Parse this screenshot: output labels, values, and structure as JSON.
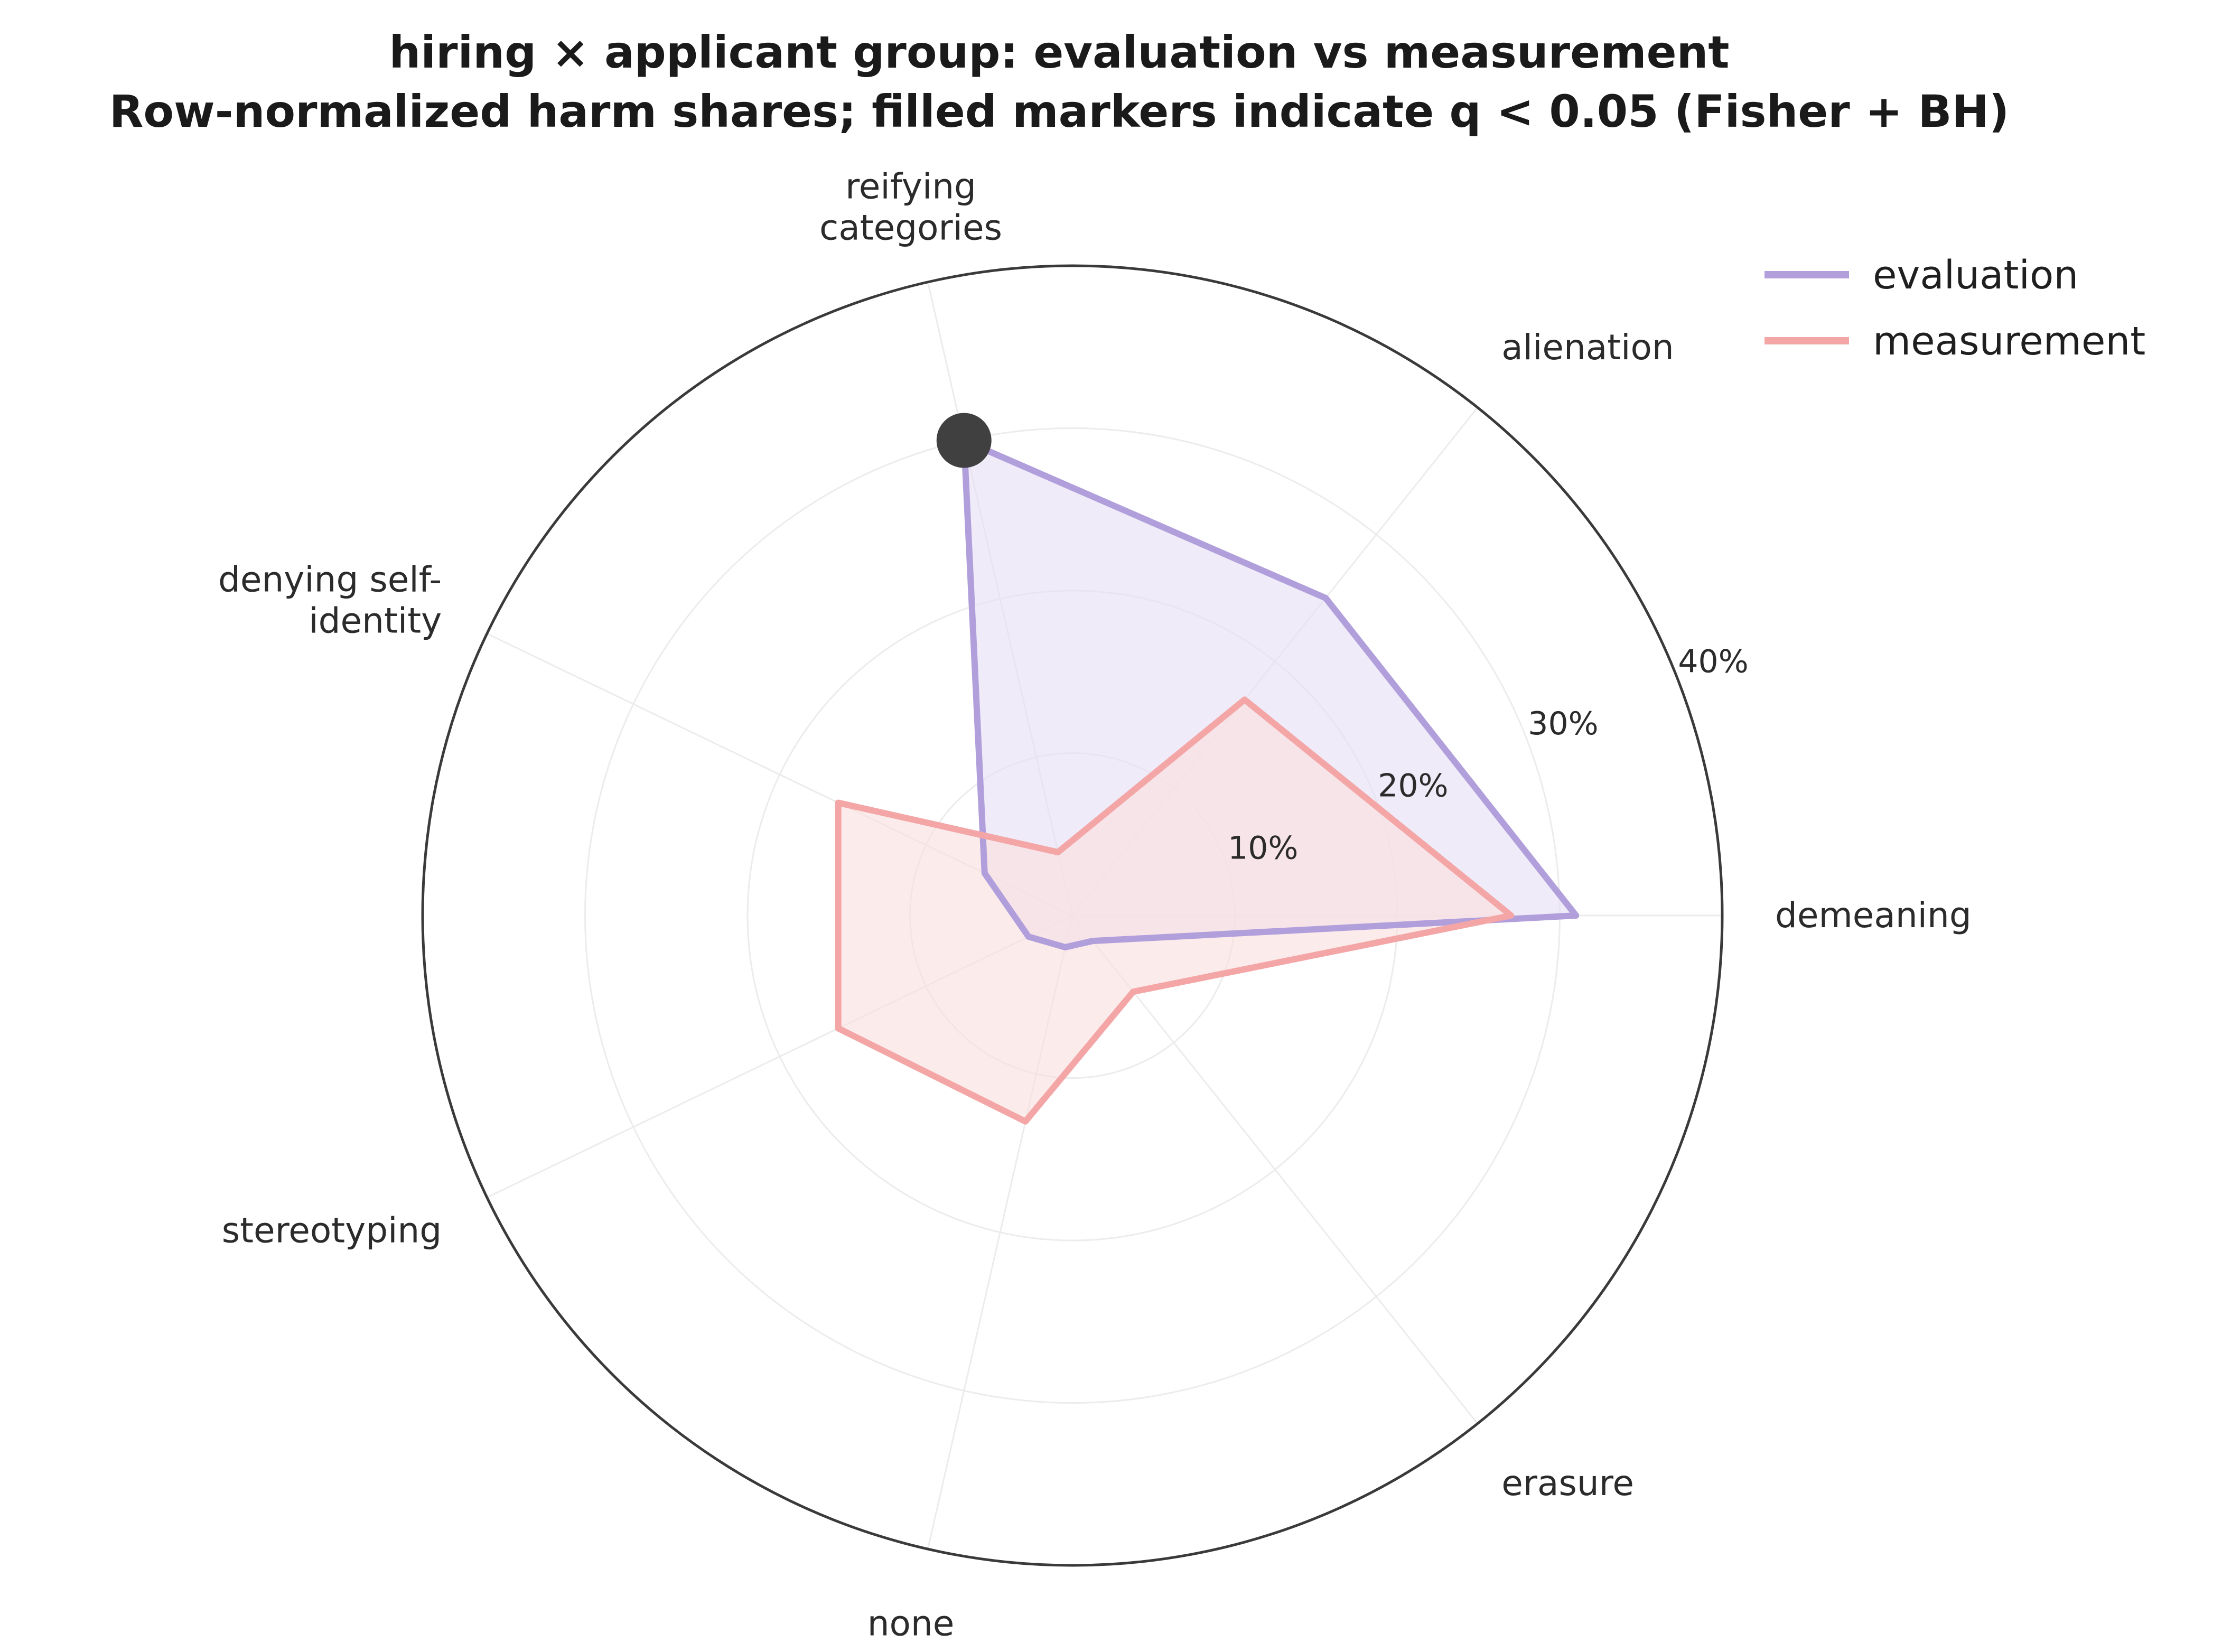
{
  "chart_data": {
    "type": "radar",
    "title": "hiring × applicant group: evaluation vs measurement",
    "subtitle": "Row-normalized harm shares; filled markers indicate q < 0.05 (Fisher + BH)",
    "categories": [
      [
        "demeaning"
      ],
      [
        "alienation"
      ],
      [
        "reifying",
        "categories"
      ],
      [
        "denying self-",
        "identity"
      ],
      [
        "stereotyping"
      ],
      [
        "none"
      ],
      [
        "erasure"
      ]
    ],
    "category_names": [
      "demeaning",
      "alienation",
      "reifying categories",
      "denying self-identity",
      "stereotyping",
      "none",
      "erasure"
    ],
    "r_ticks": [
      10,
      20,
      30,
      40
    ],
    "r_tick_labels": [
      "10%",
      "20%",
      "30%",
      "40%"
    ],
    "r_max": 40,
    "grid": true,
    "legend_position": "top-right",
    "series": [
      {
        "name": "evaluation",
        "values": [
          31,
          25,
          30,
          6,
          3,
          2,
          2
        ],
        "color": "#b19fdc",
        "fill_color": "#e6e0f5",
        "significant": [
          false,
          false,
          true,
          false,
          false,
          false,
          false
        ]
      },
      {
        "name": "measurement",
        "values": [
          27,
          17,
          4,
          16,
          16,
          13,
          6
        ],
        "color": "#f4a6a6",
        "fill_color": "#fbe1e1",
        "significant": [
          false,
          false,
          false,
          false,
          false,
          false,
          false
        ]
      }
    ],
    "marker_color": "#404040"
  }
}
